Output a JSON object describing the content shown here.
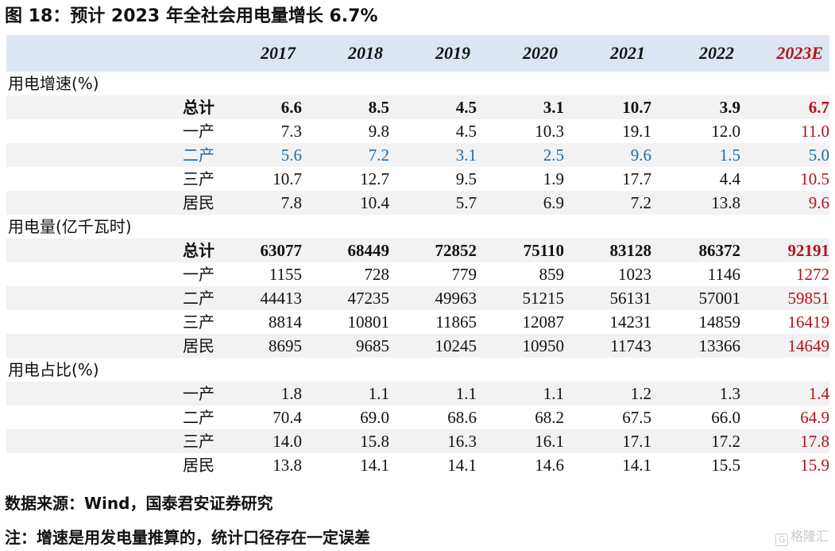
{
  "title": "图 18：预计 2023 年全社会用电量增长 6.7%",
  "years": [
    "2017",
    "2018",
    "2019",
    "2020",
    "2021",
    "2022",
    "2023E"
  ],
  "sections": [
    {
      "label": "用电增速(%)",
      "rows": [
        {
          "label": "总计",
          "style": "bold",
          "values": [
            "6.6",
            "8.5",
            "4.5",
            "3.1",
            "10.7",
            "3.9",
            "6.7"
          ]
        },
        {
          "label": "一产",
          "style": "normal",
          "values": [
            "7.3",
            "9.8",
            "4.5",
            "10.3",
            "19.1",
            "12.0",
            "11.0"
          ]
        },
        {
          "label": "二产",
          "style": "blue",
          "values": [
            "5.6",
            "7.2",
            "3.1",
            "2.5",
            "9.6",
            "1.5",
            "5.0"
          ]
        },
        {
          "label": "三产",
          "style": "normal",
          "values": [
            "10.7",
            "12.7",
            "9.5",
            "1.9",
            "17.7",
            "4.4",
            "10.5"
          ]
        },
        {
          "label": "居民",
          "style": "normal",
          "values": [
            "7.8",
            "10.4",
            "5.7",
            "6.9",
            "7.2",
            "13.8",
            "9.6"
          ]
        }
      ]
    },
    {
      "label": "用电量(亿千瓦时)",
      "rows": [
        {
          "label": "总计",
          "style": "bold",
          "values": [
            "63077",
            "68449",
            "72852",
            "75110",
            "83128",
            "86372",
            "92191"
          ]
        },
        {
          "label": "一产",
          "style": "normal",
          "values": [
            "1155",
            "728",
            "779",
            "859",
            "1023",
            "1146",
            "1272"
          ]
        },
        {
          "label": "二产",
          "style": "normal",
          "values": [
            "44413",
            "47235",
            "49963",
            "51215",
            "56131",
            "57001",
            "59851"
          ]
        },
        {
          "label": "三产",
          "style": "normal",
          "values": [
            "8814",
            "10801",
            "11865",
            "12087",
            "14231",
            "14859",
            "16419"
          ]
        },
        {
          "label": "居民",
          "style": "normal",
          "values": [
            "8695",
            "9685",
            "10245",
            "10950",
            "11743",
            "13366",
            "14649"
          ]
        }
      ]
    },
    {
      "label": "用电占比(%)",
      "rows": [
        {
          "label": "一产",
          "style": "normal",
          "values": [
            "1.8",
            "1.1",
            "1.1",
            "1.1",
            "1.2",
            "1.3",
            "1.4"
          ]
        },
        {
          "label": "二产",
          "style": "normal",
          "values": [
            "70.4",
            "69.0",
            "68.6",
            "68.2",
            "67.5",
            "66.0",
            "64.9"
          ]
        },
        {
          "label": "三产",
          "style": "normal",
          "values": [
            "14.0",
            "15.8",
            "16.3",
            "16.1",
            "17.1",
            "17.2",
            "17.8"
          ]
        },
        {
          "label": "居民",
          "style": "normal",
          "values": [
            "13.8",
            "14.1",
            "14.1",
            "14.6",
            "14.1",
            "15.5",
            "15.9"
          ]
        }
      ]
    }
  ],
  "source": "数据来源：Wind，国泰君安证券研究",
  "note": "注：增速是用发电量推算的，统计口径存在一定误差",
  "watermark": "格隆汇",
  "colors": {
    "header_bg": "#dce6f2",
    "row_shade": "#f2f2f2",
    "estimate": "#b3121d",
    "highlight": "#1f6bb0"
  }
}
